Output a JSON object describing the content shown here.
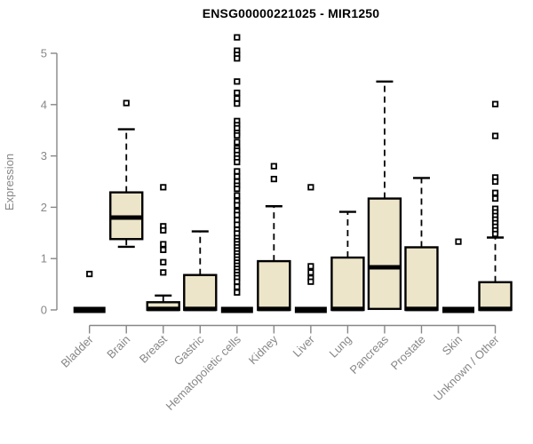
{
  "title": "ENSG00000221025 - MIR1250",
  "colors": {
    "box_fill": "#ECE5C9",
    "line": "#000000",
    "axis": "#878787",
    "title": "#000000",
    "background": "#ffffff"
  },
  "chart_data": {
    "type": "boxplot",
    "title": "ENSG00000221025 - MIR1250",
    "xlabel": "",
    "ylabel": "Expression",
    "ylim": [
      0,
      5.35
    ],
    "yticks": [
      0,
      1,
      2,
      3,
      4,
      5
    ],
    "grid": false,
    "legend": false,
    "categories": [
      "Bladder",
      "Brain",
      "Breast",
      "Gastric",
      "Hematopoietic cells",
      "Kidney",
      "Liver",
      "Lung",
      "Pancreas",
      "Prostate",
      "Skin",
      "Unknown / Other"
    ],
    "series": [
      {
        "name": "Bladder",
        "q1": 0,
        "median": 0,
        "q3": 0.02,
        "whisker_low": 0,
        "whisker_high": 0.02,
        "outliers": [
          0.7
        ]
      },
      {
        "name": "Brain",
        "q1": 1.38,
        "median": 1.8,
        "q3": 2.29,
        "whisker_low": 1.23,
        "whisker_high": 3.52,
        "outliers": [
          4.03
        ]
      },
      {
        "name": "Breast",
        "q1": 0,
        "median": 0.02,
        "q3": 0.15,
        "whisker_low": 0,
        "whisker_high": 0.28,
        "outliers": [
          2.39,
          1.63,
          1.55,
          1.28,
          1.17,
          0.93,
          0.73
        ]
      },
      {
        "name": "Gastric",
        "q1": 0,
        "median": 0.02,
        "q3": 0.68,
        "whisker_low": 0,
        "whisker_high": 1.53,
        "outliers": []
      },
      {
        "name": "Hematopoietic cells",
        "q1": 0,
        "median": 0,
        "q3": 0.02,
        "whisker_low": 0,
        "whisker_high": 0.02,
        "outliers": [
          5.31,
          5.05,
          4.97,
          4.9,
          4.45,
          4.23,
          4.12,
          4.02,
          3.68,
          3.6,
          3.54,
          3.45,
          3.4,
          3.27,
          3.15,
          3.1,
          3.02,
          2.95,
          2.88,
          2.7,
          2.6,
          2.5,
          2.42,
          2.36,
          2.23,
          2.12,
          2.04,
          1.92,
          1.85,
          1.75,
          1.66,
          1.56,
          1.49,
          1.4,
          1.34,
          1.28,
          1.22,
          1.16,
          1.1,
          1.04,
          0.98,
          0.92,
          0.86,
          0.8,
          0.74,
          0.68,
          0.62,
          0.55,
          0.45,
          0.34
        ]
      },
      {
        "name": "Kidney",
        "q1": 0,
        "median": 0.02,
        "q3": 0.95,
        "whisker_low": 0,
        "whisker_high": 2.02,
        "outliers": [
          2.8,
          2.55
        ]
      },
      {
        "name": "Liver",
        "q1": 0,
        "median": 0,
        "q3": 0.02,
        "whisker_low": 0,
        "whisker_high": 0.02,
        "outliers": [
          2.39,
          0.85,
          0.73,
          0.62,
          0.55
        ]
      },
      {
        "name": "Lung",
        "q1": 0,
        "median": 0.02,
        "q3": 1.02,
        "whisker_low": 0,
        "whisker_high": 1.91,
        "outliers": []
      },
      {
        "name": "Pancreas",
        "q1": 0.02,
        "median": 0.83,
        "q3": 2.17,
        "whisker_low": 0.02,
        "whisker_high": 4.45,
        "outliers": []
      },
      {
        "name": "Prostate",
        "q1": 0,
        "median": 0.02,
        "q3": 1.22,
        "whisker_low": 0,
        "whisker_high": 2.57,
        "outliers": []
      },
      {
        "name": "Skin",
        "q1": 0,
        "median": 0,
        "q3": 0.02,
        "whisker_low": 0,
        "whisker_high": 0.02,
        "outliers": [
          1.33
        ]
      },
      {
        "name": "Unknown / Other",
        "q1": 0,
        "median": 0.02,
        "q3": 0.54,
        "whisker_low": 0,
        "whisker_high": 1.41,
        "outliers": [
          4.01,
          3.39,
          2.58,
          2.5,
          2.28,
          2.17,
          1.97,
          1.9,
          1.83,
          1.76,
          1.69,
          1.62,
          1.55,
          1.48
        ]
      }
    ]
  }
}
